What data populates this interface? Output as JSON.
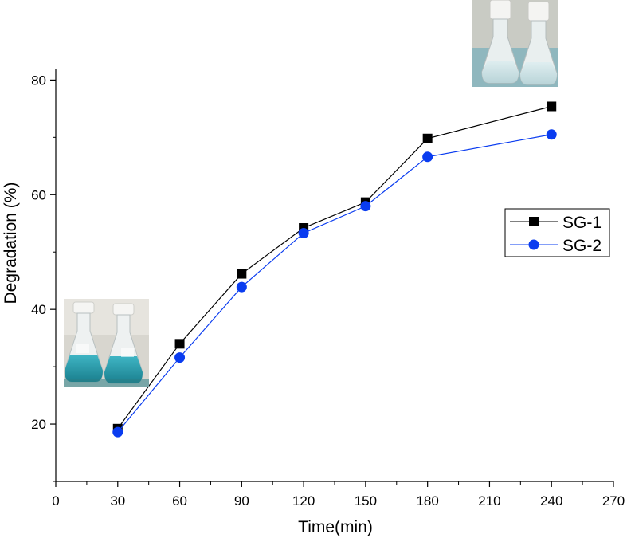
{
  "chart_data": {
    "type": "line",
    "title": "",
    "xlabel": "Time(min)",
    "ylabel": "Degradation (%)",
    "xlim": [
      0,
      270
    ],
    "ylim": [
      10,
      82
    ],
    "x_ticks": [
      0,
      30,
      60,
      90,
      120,
      150,
      180,
      210,
      240,
      270
    ],
    "y_ticks": [
      20,
      40,
      60,
      80
    ],
    "grid": false,
    "legend_position": "right",
    "x": [
      30,
      60,
      90,
      120,
      150,
      180,
      240
    ],
    "series": [
      {
        "name": "SG-1",
        "values": [
          19.2,
          34.0,
          46.2,
          54.2,
          58.7,
          69.8,
          75.4
        ],
        "color": "#000000",
        "marker": "square"
      },
      {
        "name": "SG-2",
        "values": [
          18.6,
          31.6,
          43.9,
          53.3,
          58.0,
          66.6,
          70.5
        ],
        "color": "#0a3cf0",
        "marker": "circle"
      }
    ],
    "insets": [
      {
        "name": "flasks-before-photo",
        "subject": "two flasks with blue dye solution"
      },
      {
        "name": "flasks-after-photo",
        "subject": "two flasks with nearly clear solution"
      }
    ]
  }
}
